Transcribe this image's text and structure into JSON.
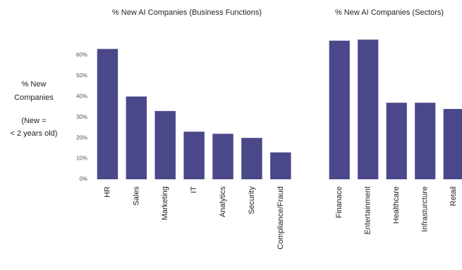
{
  "chart_data": [
    {
      "type": "bar",
      "title": "% New AI Companies (Business Functions)",
      "y_label": [
        "% New",
        "Companies"
      ],
      "note": [
        "(New =",
        "< 2 years old)"
      ],
      "categories": [
        "HR",
        "Sales",
        "Marketing",
        "IT",
        "Analytics",
        "Security",
        "Compliance/Fraud"
      ],
      "values": [
        63,
        40,
        33,
        23,
        22,
        20,
        13
      ],
      "color": "#4b4889",
      "ylim": [
        0,
        70
      ],
      "yticks": [
        {
          "value": 0,
          "label": "0%"
        },
        {
          "value": 10,
          "label": "10%"
        },
        {
          "value": 20,
          "label": "20%"
        },
        {
          "value": 30,
          "label": "30%"
        },
        {
          "value": 40,
          "label": "40%"
        },
        {
          "value": 50,
          "label": "50%"
        },
        {
          "value": 60,
          "label": "60%"
        }
      ]
    },
    {
      "type": "bar",
      "title": "% New AI Companies (Sectors)",
      "categories": [
        "Finanace",
        "Entertainment",
        "Healthcare",
        "Infrasturcture",
        "Retail"
      ],
      "values": [
        67,
        67.5,
        37,
        37,
        34
      ],
      "color": "#4b4889",
      "ylim": [
        0,
        70
      ]
    }
  ]
}
